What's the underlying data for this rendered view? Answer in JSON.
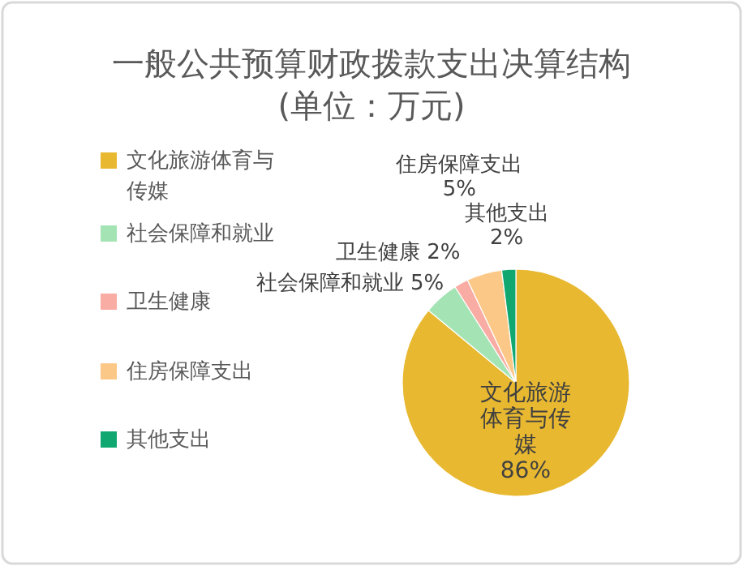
{
  "chart_data": {
    "type": "pie",
    "title": "一般公共预算财政拨款支出决算结构",
    "subtitle": "(单位：万元)",
    "categories": [
      "文化旅游体育与传媒",
      "社会保障和就业",
      "卫生健康",
      "住房保障支出",
      "其他支出"
    ],
    "values": [
      86,
      5,
      2,
      5,
      2
    ],
    "value_labels": [
      "86%",
      "5%",
      "2%",
      "5%",
      "2%"
    ],
    "colors": [
      "#e8b830",
      "#a4e4b4",
      "#f8aca4",
      "#fcc888",
      "#10a870"
    ],
    "legend": "left"
  }
}
